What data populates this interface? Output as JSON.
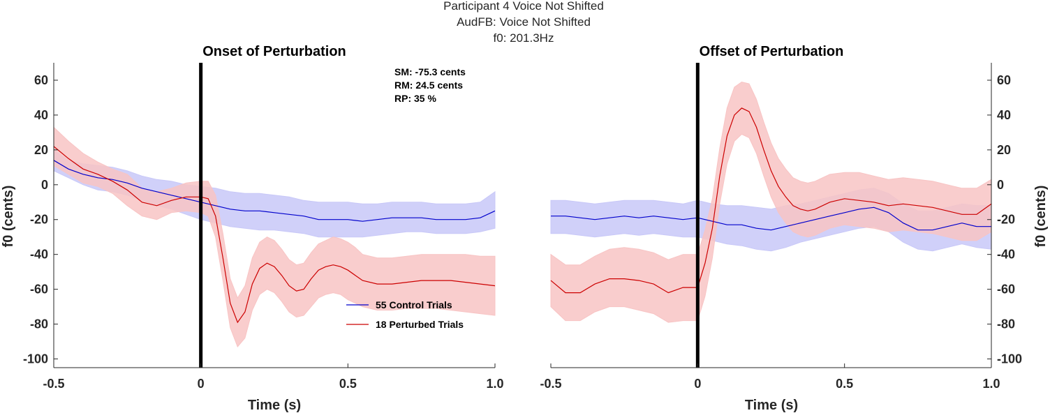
{
  "figure": {
    "title_lines": [
      "Participant 4 Voice Not Shifted",
      "AudFB: Voice Not Shifted",
      "f0: 201.3Hz"
    ]
  },
  "colors": {
    "control_line": "#0000cc",
    "control_band": "#c8c8f8",
    "perturbed_line": "#cc0000",
    "perturbed_band": "#f8c4c4",
    "marker_line": "#000000"
  },
  "stats": [
    "SM: -75.3 cents",
    "RM: 24.5 cents",
    "RP: 35 %"
  ],
  "legend": {
    "placement": "lower-middle of left panel",
    "entries": [
      {
        "label": "55 Control Trials",
        "color": "#0000cc"
      },
      {
        "label": "18 Perturbed Trials",
        "color": "#cc0000"
      }
    ]
  },
  "chart_data": [
    {
      "type": "line",
      "title": "Onset of Perturbation",
      "xlabel": "Time (s)",
      "ylabel": "f0 (cents)",
      "xlim": [
        -0.5,
        1.0
      ],
      "ylim": [
        -105,
        70
      ],
      "xticks": [
        -0.5,
        0,
        0.5,
        1.0
      ],
      "xticklabels": [
        "-0.5",
        "0",
        "0.5",
        "1.0"
      ],
      "yticks": [
        60,
        40,
        20,
        0,
        -20,
        -40,
        -60,
        -80,
        -100
      ],
      "yticklabels": [
        "60",
        "40",
        "20",
        "0",
        "-20",
        "-40",
        "-60",
        "-80",
        "-100"
      ],
      "y_axis_side": "left",
      "vline_x": 0,
      "series": [
        {
          "name": "55 Control Trials",
          "x": [
            -0.5,
            -0.45,
            -0.4,
            -0.35,
            -0.3,
            -0.25,
            -0.2,
            -0.15,
            -0.1,
            -0.05,
            0,
            0.05,
            0.1,
            0.15,
            0.2,
            0.25,
            0.3,
            0.35,
            0.4,
            0.45,
            0.5,
            0.55,
            0.6,
            0.65,
            0.7,
            0.75,
            0.8,
            0.85,
            0.9,
            0.95,
            1.0
          ],
          "mean": [
            14,
            9,
            6,
            4,
            3,
            1,
            -2,
            -4,
            -6,
            -8,
            -10,
            -12,
            -14,
            -15,
            -15,
            -16,
            -17,
            -18,
            -20,
            -20,
            -20,
            -21,
            -20,
            -19,
            -19,
            -19,
            -20,
            -20,
            -20,
            -19,
            -15
          ],
          "lower": [
            8,
            4,
            0,
            -3,
            -4,
            -6,
            -9,
            -12,
            -14,
            -17,
            -20,
            -22,
            -24,
            -25,
            -26,
            -26,
            -27,
            -28,
            -30,
            -30,
            -30,
            -30,
            -29,
            -28,
            -27,
            -27,
            -28,
            -28,
            -28,
            -27,
            -25
          ],
          "upper": [
            20,
            14,
            12,
            11,
            10,
            8,
            5,
            3,
            2,
            0,
            -1,
            -2,
            -4,
            -5,
            -5,
            -6,
            -7,
            -9,
            -10,
            -10,
            -10,
            -11,
            -11,
            -10,
            -10,
            -10,
            -11,
            -11,
            -11,
            -10,
            -4
          ]
        },
        {
          "name": "18 Perturbed Trials",
          "x": [
            -0.5,
            -0.45,
            -0.4,
            -0.35,
            -0.3,
            -0.25,
            -0.2,
            -0.15,
            -0.1,
            -0.05,
            0,
            0.025,
            0.05,
            0.075,
            0.1,
            0.125,
            0.15,
            0.175,
            0.2,
            0.225,
            0.25,
            0.275,
            0.3,
            0.325,
            0.35,
            0.375,
            0.4,
            0.425,
            0.45,
            0.475,
            0.5,
            0.525,
            0.55,
            0.6,
            0.65,
            0.7,
            0.75,
            0.8,
            0.85,
            0.9,
            0.95,
            1.0
          ],
          "mean": [
            22,
            15,
            9,
            6,
            2,
            -3,
            -10,
            -12,
            -9,
            -7,
            -7,
            -8,
            -18,
            -42,
            -68,
            -79,
            -73,
            -57,
            -48,
            -45,
            -47,
            -52,
            -58,
            -61,
            -60,
            -54,
            -49,
            -47,
            -46,
            -47,
            -49,
            -52,
            -55,
            -57,
            -57,
            -56,
            -55,
            -55,
            -55,
            -56,
            -57,
            -58
          ],
          "lower": [
            11,
            6,
            1,
            -1,
            -5,
            -12,
            -18,
            -20,
            -16,
            -15,
            -16,
            -18,
            -30,
            -55,
            -82,
            -93,
            -88,
            -72,
            -63,
            -60,
            -62,
            -67,
            -73,
            -76,
            -75,
            -70,
            -65,
            -63,
            -62,
            -63,
            -66,
            -68,
            -70,
            -72,
            -72,
            -71,
            -71,
            -71,
            -72,
            -73,
            -74,
            -75
          ],
          "upper": [
            33,
            25,
            18,
            13,
            9,
            6,
            -2,
            -4,
            -2,
            1,
            2,
            2,
            -6,
            -28,
            -54,
            -65,
            -58,
            -42,
            -33,
            -30,
            -32,
            -37,
            -43,
            -46,
            -45,
            -39,
            -34,
            -32,
            -30,
            -31,
            -33,
            -36,
            -40,
            -42,
            -42,
            -41,
            -40,
            -40,
            -40,
            -40,
            -41,
            -41
          ]
        }
      ]
    },
    {
      "type": "line",
      "title": "Offset of Perturbation",
      "xlabel": "Time (s)",
      "ylabel": "f0 (cents)",
      "xlim": [
        -0.5,
        1.0
      ],
      "ylim": [
        -105,
        70
      ],
      "xticks": [
        -0.5,
        0,
        0.5,
        1.0
      ],
      "xticklabels": [
        "-0.5",
        "0",
        "0.5",
        "1.0"
      ],
      "yticks": [
        60,
        40,
        20,
        0,
        -20,
        -40,
        -60,
        -80,
        -100
      ],
      "yticklabels": [
        "60",
        "40",
        "20",
        "0",
        "-20",
        "-40",
        "-60",
        "-80",
        "-100"
      ],
      "y_axis_side": "right",
      "vline_x": 0,
      "series": [
        {
          "name": "55 Control Trials",
          "x": [
            -0.5,
            -0.45,
            -0.4,
            -0.35,
            -0.3,
            -0.25,
            -0.2,
            -0.15,
            -0.1,
            -0.05,
            0,
            0.05,
            0.1,
            0.15,
            0.2,
            0.25,
            0.3,
            0.35,
            0.4,
            0.45,
            0.5,
            0.55,
            0.6,
            0.65,
            0.7,
            0.75,
            0.8,
            0.85,
            0.9,
            0.95,
            1.0
          ],
          "mean": [
            -18,
            -18,
            -19,
            -20,
            -19,
            -18,
            -19,
            -18,
            -19,
            -20,
            -19,
            -21,
            -23,
            -23,
            -25,
            -26,
            -24,
            -22,
            -20,
            -18,
            -16,
            -14,
            -13,
            -16,
            -22,
            -26,
            -26,
            -24,
            -22,
            -24,
            -24
          ],
          "lower": [
            -28,
            -28,
            -29,
            -30,
            -29,
            -28,
            -29,
            -28,
            -29,
            -30,
            -30,
            -32,
            -34,
            -35,
            -37,
            -38,
            -36,
            -33,
            -31,
            -29,
            -27,
            -25,
            -24,
            -27,
            -33,
            -37,
            -38,
            -36,
            -34,
            -36,
            -37
          ],
          "upper": [
            -9,
            -9,
            -10,
            -11,
            -10,
            -9,
            -9,
            -9,
            -10,
            -11,
            -9,
            -11,
            -12,
            -12,
            -13,
            -14,
            -12,
            -11,
            -9,
            -7,
            -5,
            -3,
            -2,
            -5,
            -11,
            -15,
            -15,
            -13,
            -11,
            -12,
            -12
          ]
        },
        {
          "name": "18 Perturbed Trials",
          "x": [
            -0.5,
            -0.45,
            -0.4,
            -0.35,
            -0.3,
            -0.25,
            -0.2,
            -0.15,
            -0.1,
            -0.05,
            0,
            0.025,
            0.05,
            0.075,
            0.1,
            0.125,
            0.15,
            0.175,
            0.2,
            0.225,
            0.25,
            0.275,
            0.3,
            0.325,
            0.35,
            0.375,
            0.4,
            0.45,
            0.5,
            0.55,
            0.6,
            0.65,
            0.7,
            0.75,
            0.8,
            0.85,
            0.9,
            0.95,
            1.0
          ],
          "mean": [
            -55,
            -62,
            -62,
            -57,
            -54,
            -54,
            -55,
            -57,
            -62,
            -59,
            -59,
            -45,
            -25,
            5,
            28,
            40,
            44,
            42,
            33,
            20,
            8,
            -1,
            -7,
            -12,
            -14,
            -15,
            -14,
            -10,
            -8,
            -9,
            -10,
            -12,
            -11,
            -12,
            -13,
            -15,
            -17,
            -17,
            -11
          ],
          "lower": [
            -70,
            -78,
            -78,
            -73,
            -70,
            -70,
            -72,
            -74,
            -79,
            -78,
            -78,
            -64,
            -42,
            -11,
            12,
            25,
            29,
            27,
            18,
            5,
            -7,
            -16,
            -22,
            -27,
            -29,
            -30,
            -29,
            -25,
            -23,
            -24,
            -25,
            -27,
            -26,
            -27,
            -28,
            -30,
            -32,
            -32,
            -27
          ],
          "upper": [
            -40,
            -46,
            -46,
            -41,
            -37,
            -36,
            -37,
            -39,
            -43,
            -40,
            -40,
            -26,
            -8,
            21,
            44,
            56,
            59,
            58,
            49,
            36,
            24,
            15,
            9,
            4,
            2,
            1,
            2,
            6,
            7,
            7,
            5,
            3,
            4,
            3,
            2,
            0,
            -2,
            -2,
            3
          ]
        }
      ]
    }
  ]
}
